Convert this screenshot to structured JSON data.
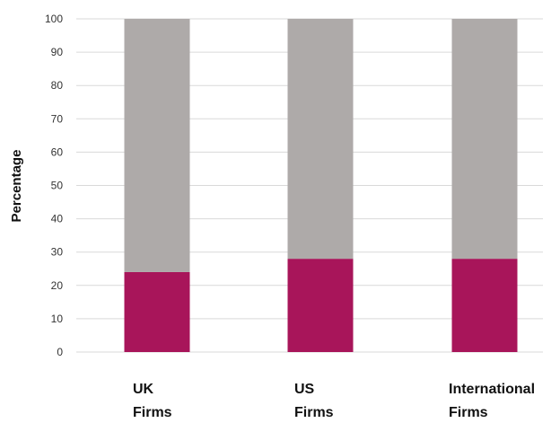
{
  "chart_data": {
    "type": "bar",
    "stacked": true,
    "title": "",
    "xlabel": "",
    "ylabel": "Percentage",
    "ylim": [
      0,
      100
    ],
    "yticks": [
      0,
      10,
      20,
      30,
      40,
      50,
      60,
      70,
      80,
      90,
      100
    ],
    "categories": [
      [
        "UK",
        "Firms"
      ],
      [
        "US",
        "Firms"
      ],
      [
        "International",
        "Firms"
      ]
    ],
    "series": [
      {
        "values": [
          24,
          28,
          28
        ],
        "color": "#a8155a"
      },
      {
        "values": [
          76,
          72,
          72
        ],
        "color": "#aeaaa9"
      }
    ],
    "grid": true,
    "legend": "none"
  }
}
